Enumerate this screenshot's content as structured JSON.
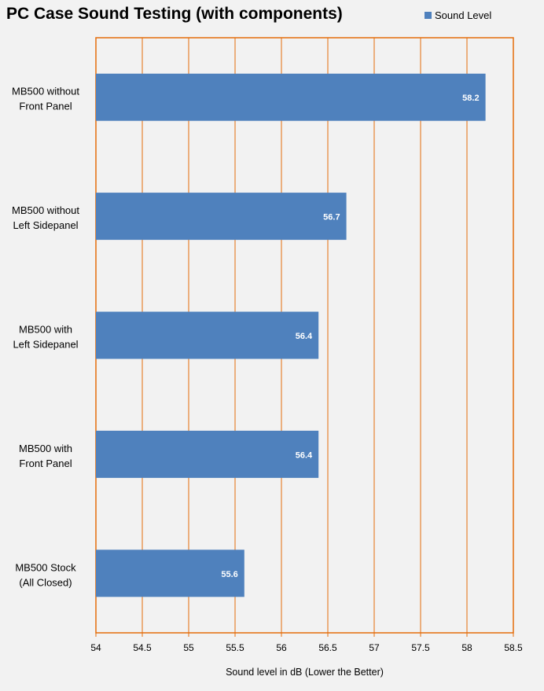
{
  "chart_data": {
    "type": "bar",
    "orientation": "horizontal",
    "title": "PC Case Sound Testing (with components)",
    "xlabel": "Sound level in dB (Lower the Better)",
    "ylabel": "",
    "xlim": [
      54,
      58.5
    ],
    "xticks": [
      "54",
      "54.5",
      "55",
      "55.5",
      "56",
      "56.5",
      "57",
      "57.5",
      "58",
      "58.5"
    ],
    "grid": "vertical",
    "legend_position": "top-right",
    "categories": [
      [
        "MB500 without",
        "Front Panel"
      ],
      [
        "MB500 without",
        "Left Sidepanel"
      ],
      [
        "MB500 with",
        "Left Sidepanel"
      ],
      [
        "MB500 with",
        "Front Panel"
      ],
      [
        "MB500 Stock",
        "(All Closed)"
      ]
    ],
    "series": [
      {
        "name": "Sound Level",
        "values": [
          58.2,
          56.7,
          56.4,
          56.4,
          55.6
        ],
        "data_labels": [
          "58.2",
          "56.7",
          "56.4",
          "56.4",
          "55.6"
        ]
      }
    ]
  },
  "colors": {
    "bar": "#4f81bd",
    "plot_border": "#e46c0a",
    "gridline": "#e46c0a",
    "background": "#f2f2f2"
  }
}
